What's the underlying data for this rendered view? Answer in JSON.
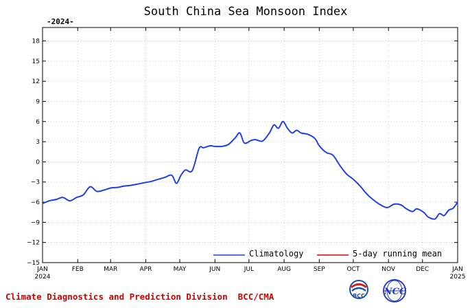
{
  "chart_data": {
    "type": "line",
    "title": "South China Sea Monsoon Index",
    "year_tag": "-2024-",
    "ylim": [
      -15,
      20
    ],
    "yticks": [
      -15,
      -12,
      -9,
      -6,
      -3,
      0,
      3,
      6,
      9,
      12,
      15,
      18
    ],
    "x_ticks": [
      {
        "label": "JAN",
        "sublabel": "2024",
        "day": 0
      },
      {
        "label": "FEB",
        "sublabel": "",
        "day": 31
      },
      {
        "label": "MAR",
        "sublabel": "",
        "day": 60
      },
      {
        "label": "APR",
        "sublabel": "",
        "day": 91
      },
      {
        "label": "MAY",
        "sublabel": "",
        "day": 121
      },
      {
        "label": "JUN",
        "sublabel": "",
        "day": 152
      },
      {
        "label": "JUL",
        "sublabel": "",
        "day": 182
      },
      {
        "label": "AUG",
        "sublabel": "",
        "day": 213
      },
      {
        "label": "SEP",
        "sublabel": "",
        "day": 244
      },
      {
        "label": "OCT",
        "sublabel": "",
        "day": 274
      },
      {
        "label": "NOV",
        "sublabel": "",
        "day": 305
      },
      {
        "label": "DEC",
        "sublabel": "",
        "day": 335
      },
      {
        "label": "JAN",
        "sublabel": "2025",
        "day": 366
      }
    ],
    "grid": true,
    "legend_position": "bottom-right",
    "series": [
      {
        "name": "Climatology",
        "color": "#1f3df0",
        "x": [
          0,
          6,
          12,
          18,
          24,
          30,
          36,
          42,
          48,
          54,
          60,
          66,
          72,
          78,
          84,
          90,
          96,
          102,
          108,
          114,
          118,
          122,
          126,
          132,
          138,
          142,
          148,
          152,
          158,
          164,
          170,
          174,
          178,
          184,
          188,
          194,
          200,
          204,
          208,
          212,
          216,
          220,
          224,
          228,
          234,
          240,
          244,
          250,
          256,
          262,
          268,
          274,
          280,
          286,
          292,
          298,
          304,
          310,
          316,
          320,
          326,
          330,
          336,
          340,
          346,
          350,
          354,
          358,
          362,
          366
        ],
        "y": [
          -6.2,
          -5.8,
          -5.6,
          -5.3,
          -5.8,
          -5.3,
          -4.9,
          -3.7,
          -4.4,
          -4.2,
          -3.9,
          -3.8,
          -3.6,
          -3.5,
          -3.3,
          -3.1,
          -2.9,
          -2.6,
          -2.3,
          -2.0,
          -3.2,
          -2.0,
          -1.2,
          -1.3,
          2.0,
          2.1,
          2.4,
          2.3,
          2.3,
          2.6,
          3.6,
          4.3,
          2.8,
          3.2,
          3.3,
          3.1,
          4.3,
          5.5,
          5.0,
          6.0,
          5.0,
          4.3,
          4.7,
          4.3,
          4.1,
          3.5,
          2.4,
          1.4,
          1.0,
          -0.5,
          -1.8,
          -2.6,
          -3.6,
          -4.8,
          -5.7,
          -6.4,
          -6.8,
          -6.3,
          -6.4,
          -6.9,
          -7.4,
          -7.0,
          -7.5,
          -8.2,
          -8.5,
          -7.7,
          -8.0,
          -7.2,
          -6.9,
          -6.0
        ]
      },
      {
        "name": "5-day running mean",
        "color": "#e00000",
        "x": [],
        "y": []
      }
    ]
  },
  "footer_text": "Climate Diagnostics and Prediction Division  BCC/CMA",
  "logos": {
    "bcc": {
      "text": "BCC",
      "color": "#1e4fa8",
      "accent": "#d42020"
    },
    "ncc": {
      "text": "NCC",
      "color": "#2a3fbd"
    }
  }
}
